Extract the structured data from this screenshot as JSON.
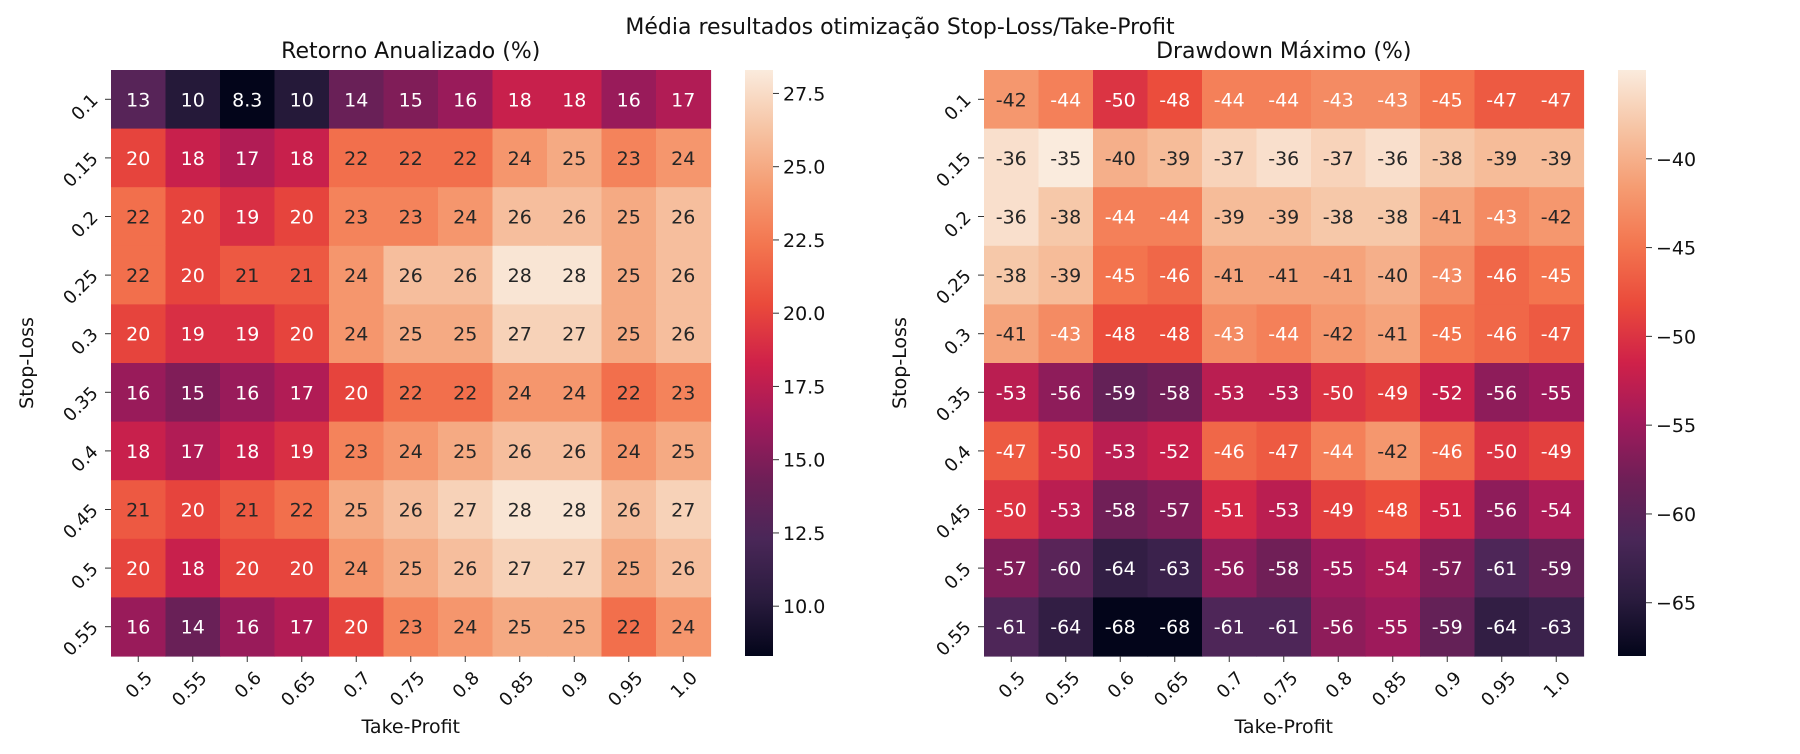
{
  "figure_title": "Média resultados otimização Stop-Loss/Take-Profit",
  "chart_data": [
    {
      "type": "heatmap",
      "title": "Retorno Anualizado (%)",
      "xlabel": "Take-Profit",
      "ylabel": "Stop-Loss",
      "x_categories": [
        "0.5",
        "0.55",
        "0.6",
        "0.65",
        "0.7",
        "0.75",
        "0.8",
        "0.85",
        "0.9",
        "0.95",
        "1.0"
      ],
      "y_categories": [
        "0.1",
        "0.15",
        "0.2",
        "0.25",
        "0.3",
        "0.35",
        "0.4",
        "0.45",
        "0.5",
        "0.55"
      ],
      "values": [
        [
          13,
          10,
          8.3,
          10,
          14,
          15,
          16,
          18,
          18,
          16,
          17
        ],
        [
          20,
          18,
          17,
          18,
          22,
          22,
          22,
          24,
          25,
          23,
          24
        ],
        [
          22,
          20,
          19,
          20,
          23,
          23,
          24,
          26,
          26,
          25,
          26
        ],
        [
          22,
          20,
          21,
          21,
          24,
          26,
          26,
          28,
          28,
          25,
          26
        ],
        [
          20,
          19,
          19,
          20,
          24,
          25,
          25,
          27,
          27,
          25,
          26
        ],
        [
          16,
          15,
          16,
          17,
          20,
          22,
          22,
          24,
          24,
          22,
          23
        ],
        [
          18,
          17,
          18,
          19,
          23,
          24,
          25,
          26,
          26,
          24,
          25
        ],
        [
          21,
          20,
          21,
          22,
          25,
          26,
          27,
          28,
          28,
          26,
          27
        ],
        [
          20,
          18,
          20,
          20,
          24,
          25,
          26,
          27,
          27,
          25,
          26
        ],
        [
          16,
          14,
          16,
          17,
          20,
          23,
          24,
          25,
          25,
          22,
          24
        ]
      ],
      "colorbar": {
        "vmin": 8.3,
        "vmax": 28.3,
        "ticks": [
          "10.0",
          "12.5",
          "15.0",
          "17.5",
          "20.0",
          "22.5",
          "25.0",
          "27.5"
        ]
      },
      "colormap": "rocket",
      "annotation_threshold": 20.5
    },
    {
      "type": "heatmap",
      "title": "Drawdown Máximo (%)",
      "xlabel": "Take-Profit",
      "ylabel": "Stop-Loss",
      "x_categories": [
        "0.5",
        "0.55",
        "0.6",
        "0.65",
        "0.7",
        "0.75",
        "0.8",
        "0.85",
        "0.9",
        "0.95",
        "1.0"
      ],
      "y_categories": [
        "0.1",
        "0.15",
        "0.2",
        "0.25",
        "0.3",
        "0.35",
        "0.4",
        "0.45",
        "0.5",
        "0.55"
      ],
      "values": [
        [
          -42,
          -44,
          -50,
          -48,
          -44,
          -44,
          -43,
          -43,
          -45,
          -47,
          -47
        ],
        [
          -36,
          -35,
          -40,
          -39,
          -37,
          -36,
          -37,
          -36,
          -38,
          -39,
          -39
        ],
        [
          -36,
          -38,
          -44,
          -44,
          -39,
          -39,
          -38,
          -38,
          -41,
          -43,
          -42
        ],
        [
          -38,
          -39,
          -45,
          -46,
          -41,
          -41,
          -41,
          -40,
          -43,
          -46,
          -45
        ],
        [
          -41,
          -43,
          -48,
          -48,
          -43,
          -44,
          -42,
          -41,
          -45,
          -46,
          -47
        ],
        [
          -53,
          -56,
          -59,
          -58,
          -53,
          -53,
          -50,
          -49,
          -52,
          -56,
          -55
        ],
        [
          -47,
          -50,
          -53,
          -52,
          -46,
          -47,
          -44,
          -42,
          -46,
          -50,
          -49
        ],
        [
          -50,
          -53,
          -58,
          -57,
          -51,
          -53,
          -49,
          -48,
          -51,
          -56,
          -54
        ],
        [
          -57,
          -60,
          -64,
          -63,
          -56,
          -58,
          -55,
          -54,
          -57,
          -61,
          -59
        ],
        [
          -61,
          -64,
          -68,
          -68,
          -61,
          -61,
          -56,
          -55,
          -59,
          -64,
          -63
        ]
      ],
      "colorbar": {
        "vmin": -68,
        "vmax": -35,
        "ticks": [
          "−65",
          "−60",
          "−55",
          "−50",
          "−45",
          "−40"
        ]
      },
      "colormap": "rocket",
      "annotation_threshold": -42.8
    }
  ]
}
